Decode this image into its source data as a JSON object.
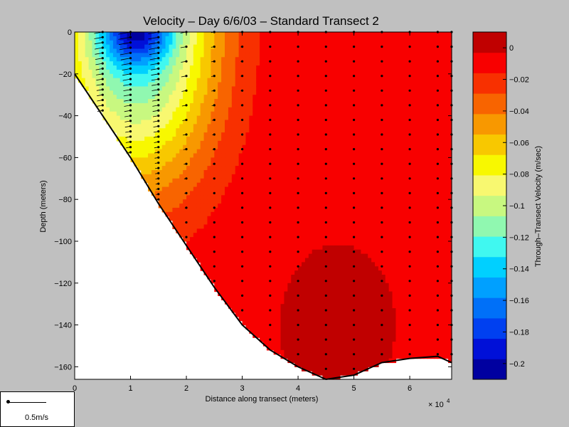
{
  "chart_data": {
    "type": "heatmap",
    "title": "Velocity – Day 6/6/03 – Standard Transect 2",
    "xlabel": "Distance along transect (meters)",
    "ylabel": "Depth (meters)",
    "x_multiplier_label": "× 10",
    "x_multiplier_exp": "4",
    "xlim": [
      0,
      6.75
    ],
    "ylim": [
      -166,
      0
    ],
    "x_ticks": [
      0,
      1,
      2,
      3,
      4,
      5,
      6
    ],
    "y_ticks": [
      0,
      -20,
      -40,
      -60,
      -80,
      -100,
      -120,
      -140,
      -160
    ],
    "colorbar": {
      "label": "Through–Transect Velocity (m/sec)",
      "range": [
        -0.21,
        0.01
      ],
      "ticks": [
        0,
        -0.02,
        -0.04,
        -0.06,
        -0.08,
        -0.1,
        -0.12,
        -0.14,
        -0.16,
        -0.18,
        -0.2
      ],
      "tick_labels": [
        "0",
        "−0.02",
        "−0.04",
        "−0.06",
        "−0.08",
        "−0.1",
        "−0.12",
        "−0.14",
        "−0.16",
        "−0.18",
        "−0.2"
      ],
      "colors": [
        "#0000a0",
        "#0010d8",
        "#0040f0",
        "#0070f8",
        "#00a0ff",
        "#00d0ff",
        "#40f8f0",
        "#90f8b0",
        "#c8f880",
        "#f8f870",
        "#f8f800",
        "#f8c800",
        "#f89800",
        "#f86400",
        "#f83000",
        "#f80000",
        "#c00000"
      ]
    },
    "bottom_profile": [
      [
        0,
        -20
      ],
      [
        0.5,
        -40
      ],
      [
        1,
        -60
      ],
      [
        1.5,
        -82
      ],
      [
        2,
        -102
      ],
      [
        2.5,
        -122
      ],
      [
        3,
        -140
      ],
      [
        3.5,
        -152
      ],
      [
        4,
        -160
      ],
      [
        4.5,
        -166
      ],
      [
        5,
        -164
      ],
      [
        5.5,
        -158
      ],
      [
        6,
        -156
      ],
      [
        6.5,
        -155
      ],
      [
        6.75,
        -158
      ]
    ],
    "station_x": [
      0.5,
      1,
      1.5,
      2,
      2.5,
      3,
      3.5,
      4,
      4.5,
      5,
      5.5,
      6,
      6.5,
      6.75
    ],
    "vector_scale": "0.5m/s"
  }
}
